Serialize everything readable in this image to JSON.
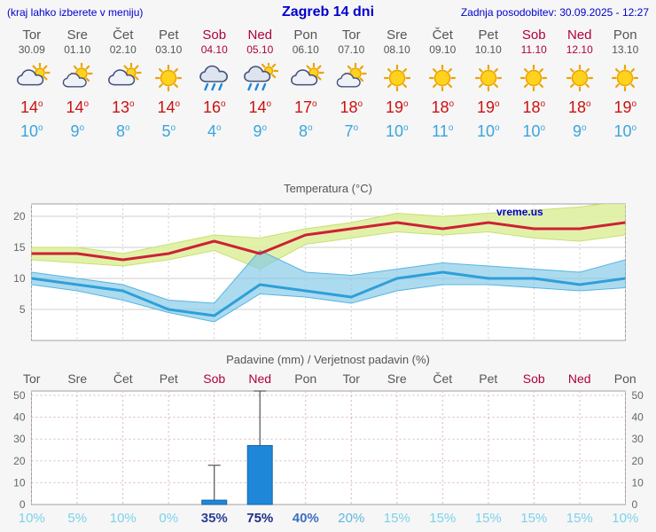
{
  "header": {
    "left_note": "(kraj lahko izberete v meniju)",
    "title": "Zagreb 14 dni",
    "updated": "Zadnja posodobitev: 30.09.2025 - 12:27"
  },
  "colors": {
    "header_blue": "#0000cc",
    "weekend_red": "#b00040",
    "tmax_red": "#cc1111",
    "tmin_blue": "#3aa5dc"
  },
  "days": [
    {
      "name": "Tor",
      "date": "30.09",
      "weekend": false,
      "icon": "mostly-cloudy",
      "tmax": 14,
      "tmin": 10
    },
    {
      "name": "Sre",
      "date": "01.10",
      "weekend": false,
      "icon": "partly-cloudy",
      "tmax": 14,
      "tmin": 9
    },
    {
      "name": "Čet",
      "date": "02.10",
      "weekend": false,
      "icon": "mostly-cloudy",
      "tmax": 13,
      "tmin": 8
    },
    {
      "name": "Pet",
      "date": "03.10",
      "weekend": false,
      "icon": "sunny",
      "tmax": 14,
      "tmin": 5
    },
    {
      "name": "Sob",
      "date": "04.10",
      "weekend": true,
      "icon": "rain",
      "tmax": 16,
      "tmin": 4
    },
    {
      "name": "Ned",
      "date": "05.10",
      "weekend": true,
      "icon": "rain-sun",
      "tmax": 14,
      "tmin": 9
    },
    {
      "name": "Pon",
      "date": "06.10",
      "weekend": false,
      "icon": "mostly-cloudy",
      "tmax": 17,
      "tmin": 8
    },
    {
      "name": "Tor",
      "date": "07.10",
      "weekend": false,
      "icon": "partly-cloudy",
      "tmax": 18,
      "tmin": 7
    },
    {
      "name": "Sre",
      "date": "08.10",
      "weekend": false,
      "icon": "sunny",
      "tmax": 19,
      "tmin": 10
    },
    {
      "name": "Čet",
      "date": "09.10",
      "weekend": false,
      "icon": "sunny",
      "tmax": 18,
      "tmin": 11
    },
    {
      "name": "Pet",
      "date": "10.10",
      "weekend": false,
      "icon": "sunny",
      "tmax": 19,
      "tmin": 10
    },
    {
      "name": "Sob",
      "date": "11.10",
      "weekend": true,
      "icon": "sunny",
      "tmax": 18,
      "tmin": 10
    },
    {
      "name": "Ned",
      "date": "12.10",
      "weekend": true,
      "icon": "sunny",
      "tmax": 18,
      "tmin": 9
    },
    {
      "name": "Pon",
      "date": "13.10",
      "weekend": false,
      "icon": "sunny",
      "tmax": 19,
      "tmin": 10
    }
  ],
  "chart_data": [
    {
      "type": "area",
      "title": "Temperatura (°C)",
      "watermark": "vreme.us",
      "x_labels": [
        "Tor",
        "Sre",
        "Čet",
        "Pet",
        "Sob",
        "Ned",
        "Pon",
        "Tor",
        "Sre",
        "Čet",
        "Pet",
        "Sob",
        "Ned",
        "Pon"
      ],
      "ylim": [
        0,
        22
      ],
      "yticks": [
        5,
        10,
        15,
        20
      ],
      "series": [
        {
          "name": "tmax",
          "color": "#cc2233",
          "values": [
            14,
            14,
            13,
            14,
            16,
            14,
            17,
            18,
            19,
            18,
            19,
            18,
            18,
            19
          ]
        },
        {
          "name": "tmin",
          "color": "#2f9fd8",
          "values": [
            10,
            9,
            8,
            5,
            4,
            9,
            8,
            7,
            10,
            11,
            10,
            10,
            9,
            10
          ]
        },
        {
          "name": "tmax_band_upper",
          "values": [
            15,
            15,
            14,
            15.5,
            17,
            16.5,
            18,
            19,
            20.5,
            20,
            20.5,
            21,
            21.5,
            22.5
          ]
        },
        {
          "name": "tmax_band_lower",
          "values": [
            13,
            12.5,
            12,
            13,
            14.5,
            11.5,
            15.5,
            16.5,
            17.5,
            17,
            17.5,
            16.5,
            16,
            17
          ]
        },
        {
          "name": "tmin_band_upper",
          "values": [
            11,
            10,
            9,
            6.5,
            6,
            14.5,
            11,
            10.5,
            11.5,
            12.5,
            12,
            11.5,
            11,
            13
          ]
        },
        {
          "name": "tmin_band_lower",
          "values": [
            9,
            8,
            6.5,
            4.5,
            3,
            7.5,
            7,
            6,
            8,
            9,
            9,
            8.5,
            8,
            8.5
          ]
        }
      ],
      "band_colors": {
        "tmax_band": "#dff0a0",
        "tmin_band": "#7fc8e8"
      }
    },
    {
      "type": "bar",
      "title": "Padavine (mm) / Verjetnost padavin (%)",
      "x_labels": [
        "Tor",
        "Sre",
        "Čet",
        "Pet",
        "Sob",
        "Ned",
        "Pon",
        "Tor",
        "Sre",
        "Čet",
        "Pet",
        "Sob",
        "Ned",
        "Pon"
      ],
      "ylim": [
        0,
        52
      ],
      "yticks": [
        0,
        10,
        20,
        30,
        40,
        50
      ],
      "bar_color": "#1e87d8",
      "precip_mm": [
        0,
        0,
        0,
        0,
        2,
        27,
        0,
        0,
        0,
        0,
        0,
        0,
        0,
        0
      ],
      "precip_max_mm": [
        0,
        0,
        0,
        0,
        18,
        52,
        0,
        0,
        0,
        0,
        0,
        0,
        0,
        0
      ],
      "probability_pct": [
        "10%",
        "5%",
        "10%",
        "0%",
        "35%",
        "75%",
        "40%",
        "20%",
        "15%",
        "15%",
        "15%",
        "15%",
        "15%",
        "10%"
      ],
      "probability_colors": [
        "#7cd2ea",
        "#7cd2ea",
        "#7cd2ea",
        "#7cd2ea",
        "#2b3f97",
        "#1f2d87",
        "#3d6fc0",
        "#5fb8dc",
        "#7cd2ea",
        "#7cd2ea",
        "#7cd2ea",
        "#7cd2ea",
        "#7cd2ea",
        "#7cd2ea"
      ]
    }
  ]
}
